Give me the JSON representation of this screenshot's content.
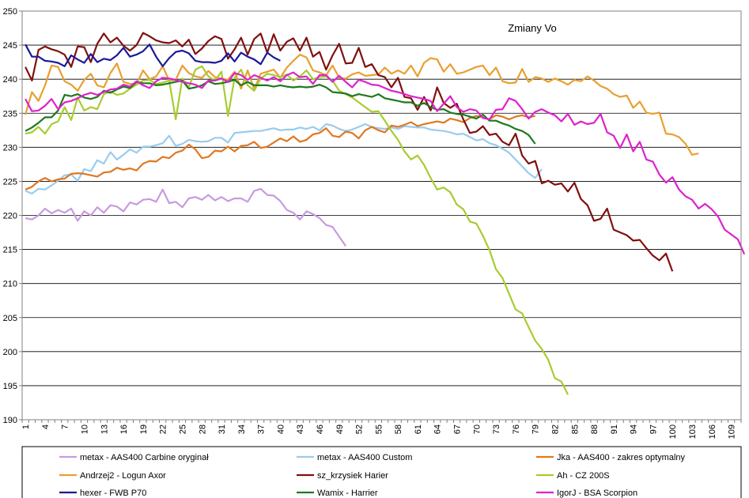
{
  "chart_data": {
    "type": "line",
    "title": "Zmiany Vo",
    "xlabel": "",
    "ylabel": "",
    "ylim": [
      190,
      250
    ],
    "yticks": [
      190,
      195,
      200,
      205,
      210,
      215,
      220,
      225,
      230,
      235,
      240,
      245,
      250
    ],
    "x_count": 110,
    "x_tick_labels": [
      "1",
      "4",
      "7",
      "10",
      "13",
      "16",
      "19",
      "22",
      "25",
      "28",
      "31",
      "34",
      "37",
      "40",
      "43",
      "46",
      "49",
      "52",
      "55",
      "58",
      "61",
      "64",
      "67",
      "70",
      "73",
      "76",
      "79",
      "82",
      "85",
      "88",
      "91",
      "94",
      "97",
      "100",
      "103",
      "106",
      "109"
    ],
    "grid": "horizontal",
    "legend_position": "bottom",
    "series": [
      {
        "name": "metax - AAS400 Carbine oryginał",
        "color": "#c89ae0",
        "values": [
          219.6,
          219.4,
          220,
          221,
          220.3,
          220.8,
          220.4,
          221,
          219.2,
          220.6,
          220,
          221.2,
          220.4,
          221.5,
          221.3,
          220.6,
          221.9,
          221.6,
          222.3,
          222.4,
          222,
          223.8,
          221.8,
          222,
          221.2,
          222.5,
          222.7,
          222.3,
          223,
          222.2,
          222.7,
          222.1,
          222.5,
          222.5,
          222,
          223.6,
          223.9,
          223,
          222.9,
          222.1,
          220.8,
          220.4,
          219.4,
          220.6,
          220.2,
          219.6,
          218.6,
          218.3,
          216.9,
          215.5
        ]
      },
      {
        "name": "metax - AAS400 Custom",
        "color": "#99ccee",
        "values": [
          223.6,
          223.2,
          223.9,
          223.8,
          224.4,
          225.1,
          225.9,
          226,
          225.1,
          226.8,
          226.5,
          228.1,
          227.6,
          229.3,
          228.2,
          228.9,
          229.7,
          229.2,
          230.1,
          230.1,
          230.3,
          230.6,
          231.7,
          230.2,
          230.5,
          231.1,
          230.9,
          230.8,
          230.9,
          231.4,
          231.4,
          230.7,
          232.1,
          232.2,
          232.3,
          232.4,
          232.4,
          232.6,
          232.8,
          232.5,
          232.6,
          232.6,
          232.9,
          232.7,
          233,
          232.5,
          233.4,
          233.2,
          232.7,
          232.4,
          232.6,
          233,
          233.4,
          233,
          232.8,
          232.7,
          232.9,
          232.7,
          233.1,
          233,
          232.9,
          232.9,
          232.6,
          232.5,
          232.4,
          232.2,
          231.9,
          232,
          231.5,
          231,
          231.2,
          230.6,
          230.3,
          229.8,
          229.2,
          228.2,
          227.2,
          226.2,
          225.5,
          226.8
        ]
      },
      {
        "name": "Jka - AAS400 - zakres optymalny",
        "color": "#e07820",
        "values": [
          223.8,
          224.2,
          225,
          225.5,
          225,
          225.3,
          225.4,
          226.1,
          226.2,
          226.1,
          225.9,
          225.7,
          226.3,
          226.4,
          227,
          226.7,
          226.9,
          226.6,
          227.6,
          228,
          227.9,
          228.6,
          228.4,
          229.2,
          229.5,
          230.4,
          229.7,
          228.4,
          228.6,
          229.5,
          229.4,
          230.1,
          229.4,
          230.2,
          230.3,
          230.8,
          229.9,
          230.1,
          230.7,
          231.3,
          230.9,
          231.6,
          230.8,
          231.1,
          231.9,
          232.1,
          232.8,
          231.7,
          231.5,
          232.3,
          232.1,
          231.3,
          232.5,
          233,
          232.5,
          232.2,
          233.2,
          233,
          233.3,
          233.7,
          233.1,
          233.4,
          233.6,
          233.8,
          233.6,
          234.2,
          234,
          233.7,
          234.3,
          234.6,
          234.4,
          234.1,
          234.7,
          234.5,
          234.1,
          234.5,
          234.7,
          234.4,
          234.6
        ]
      },
      {
        "name": "Andrzej2 - Logun Axor",
        "color": "#e8a030",
        "values": [
          234.8,
          238.1,
          236.8,
          239.1,
          242,
          241.8,
          239.7,
          239.2,
          238.3,
          239.9,
          240.8,
          239.1,
          238.8,
          240.9,
          242.3,
          239.6,
          239.3,
          239.3,
          241.3,
          240,
          240.4,
          241.9,
          239.8,
          239.9,
          242,
          240.9,
          240.4,
          240.2,
          241.2,
          240.3,
          240.1,
          239.9,
          241.1,
          238.6,
          241.3,
          238.5,
          240.8,
          241.1,
          241.4,
          240.2,
          241.7,
          242.7,
          243.6,
          243.2,
          241.3,
          241,
          240.6,
          242,
          240.2,
          240.1,
          240.7,
          241,
          240.5,
          240.6,
          240.7,
          241.7,
          240.8,
          241.3,
          240.8,
          242,
          240.4,
          242.4,
          243.1,
          242.9,
          241.1,
          242.2,
          240.8,
          241,
          241.4,
          241.8,
          242,
          240.6,
          241.7,
          239.7,
          239.4,
          239.5,
          241.5,
          239.6,
          240.3,
          240.1,
          239.6,
          240.1,
          239.7,
          239.2,
          239.9,
          239.7,
          240.4,
          239.8,
          239,
          238.6,
          237.8,
          237.4,
          237.6,
          235.8,
          236.7,
          235.1,
          234.9,
          235.1,
          232,
          231.9,
          231.5,
          230.5,
          228.9,
          229.1
        ]
      },
      {
        "name": "sz_krzysiek Harier",
        "color": "#801010",
        "values": [
          241.8,
          239.8,
          244.3,
          244.8,
          244.4,
          244.1,
          243.6,
          241.8,
          244.8,
          244.7,
          242.5,
          245.2,
          246.7,
          245.4,
          246.1,
          244.9,
          244.2,
          245,
          246.8,
          246.3,
          245.7,
          245.4,
          245.3,
          245.7,
          244.8,
          245.8,
          243.7,
          244.5,
          245.6,
          246.3,
          245.9,
          243,
          244.4,
          246.1,
          243.6,
          245.9,
          246.7,
          243.9,
          246.6,
          244.2,
          245.5,
          246,
          244.2,
          246.1,
          243.3,
          244,
          241.4,
          243.5,
          245.2,
          242.3,
          242.4,
          244.6,
          241.8,
          242.2,
          240.6,
          240.3,
          238.8,
          240.2,
          237.4,
          237.2,
          235.5,
          237.4,
          235.4,
          238.8,
          236.5,
          235.8,
          236.4,
          234.1,
          232.1,
          232.3,
          233.1,
          231.8,
          232,
          230.8,
          230.3,
          232,
          228.8,
          227.6,
          228,
          224.7,
          225.1,
          224.5,
          224.7,
          223.5,
          224.8,
          222.4,
          221.5,
          219.2,
          219.5,
          221,
          217.9,
          217.5,
          217.1,
          216.3,
          216.4,
          215.2,
          214.1,
          213.4,
          214.4,
          211.8
        ]
      },
      {
        "name": "Ah - CZ 200S",
        "color": "#a8cc30",
        "values": [
          232,
          232.2,
          233,
          232,
          233.4,
          233.8,
          235.9,
          234,
          237.3,
          235.4,
          235.9,
          235.6,
          237.8,
          238.2,
          237.7,
          237.9,
          238.6,
          239.2,
          239.8,
          239.9,
          239.3,
          239.5,
          239.8,
          234.1,
          240.1,
          238.8,
          241.4,
          241.9,
          240.4,
          239.8,
          241.1,
          234.6,
          240.2,
          241.4,
          239.1,
          238.3,
          240.1,
          240.8,
          240.6,
          240.3,
          240.7,
          239.8,
          240.4,
          241.3,
          240,
          240.3,
          240.4,
          239.8,
          238.3,
          237.8,
          237.3,
          236.6,
          235.9,
          235.2,
          235.3,
          233.9,
          232.4,
          231.1,
          229.4,
          228.2,
          228.8,
          227.4,
          225.5,
          223.8,
          224.1,
          223.4,
          221.6,
          220.9,
          219.1,
          218.8,
          217,
          214.9,
          212.1,
          210.8,
          208.5,
          206.2,
          205.6,
          203.6,
          201.6,
          200.4,
          198.8,
          196.1,
          195.6,
          193.7
        ]
      },
      {
        "name": "hexer - FWB P70",
        "color": "#1a1a99",
        "values": [
          245.1,
          243.3,
          243.3,
          242.7,
          242.6,
          242.4,
          241.9,
          243.5,
          242.9,
          242.4,
          243.7,
          242.5,
          243,
          242.8,
          243.5,
          244.6,
          243.3,
          243.6,
          244.1,
          245.1,
          243.3,
          241.9,
          243.1,
          244,
          244.2,
          243.8,
          242.7,
          242.5,
          242.5,
          242.4,
          242.7,
          243.8,
          242.6,
          243.9,
          243.3,
          242.9,
          242.2,
          243.9,
          243.2,
          242.7
        ]
      },
      {
        "name": "Wamix - Harrier",
        "color": "#207820",
        "values": [
          232.4,
          232.9,
          233.6,
          234.4,
          234.4,
          235.4,
          237.7,
          237.5,
          237.8,
          237.3,
          237.1,
          237.4,
          238.3,
          238,
          238.5,
          238.9,
          238.7,
          239.6,
          239.4,
          239.4,
          239.1,
          239.2,
          239.4,
          239.6,
          239.8,
          238.6,
          238.8,
          239.1,
          239.7,
          239.3,
          239.4,
          239.6,
          239.9,
          239.1,
          239.6,
          239.1,
          239.1,
          239.1,
          238.9,
          239.1,
          238.9,
          238.8,
          238.9,
          238.8,
          238.9,
          239.2,
          238.8,
          238.1,
          238,
          237.9,
          237.5,
          237.8,
          237.6,
          237.4,
          237.8,
          237.2,
          237,
          236.8,
          236.6,
          236.6,
          236.1,
          236.5,
          235.9,
          235.5,
          235.6,
          235.1,
          234.9,
          234.8,
          234.5,
          234.2,
          234.8,
          233.9,
          233.9,
          233.5,
          233.2,
          232.7,
          232.4,
          231.8,
          230.5
        ]
      },
      {
        "name": "IgorJ - BSA Scorpion",
        "color": "#dd22cc",
        "values": [
          237.1,
          235.3,
          235.4,
          236.1,
          237.1,
          235.6,
          236.6,
          236.8,
          237.2,
          237.7,
          238,
          237.7,
          238.1,
          238.5,
          238.6,
          239.2,
          238.9,
          239.7,
          239.1,
          238.7,
          239.7,
          240.2,
          240.1,
          239.9,
          239.6,
          239.4,
          239.2,
          238.7,
          239.8,
          239.8,
          240.1,
          239.6,
          240.9,
          240.6,
          239.9,
          240.6,
          240.2,
          239.8,
          240.3,
          239.7,
          240.6,
          241,
          240.3,
          240.4,
          239.3,
          240.6,
          240.6,
          239.6,
          240.5,
          239.6,
          238.8,
          239.9,
          239.6,
          239.2,
          239.1,
          238.7,
          238.3,
          238.1,
          237.8,
          237.5,
          237.3,
          237.1,
          236.8,
          235.3,
          236.4,
          237.5,
          235.9,
          235.2,
          235.6,
          235.4,
          234.3,
          234.1,
          235.5,
          235.6,
          237.2,
          236.8,
          235.6,
          234.2,
          235.2,
          235.6,
          235.1,
          234.7,
          233.8,
          234.9,
          233.3,
          233.8,
          233.4,
          233.6,
          234.9,
          232.2,
          231.7,
          229.9,
          231.9,
          229.4,
          230.8,
          228.2,
          227.9,
          226,
          224.8,
          225.6,
          223.8,
          222.8,
          222.3,
          221,
          221.7,
          220.9,
          219.8,
          217.9,
          217.2,
          216.5,
          214.3
        ]
      }
    ]
  }
}
